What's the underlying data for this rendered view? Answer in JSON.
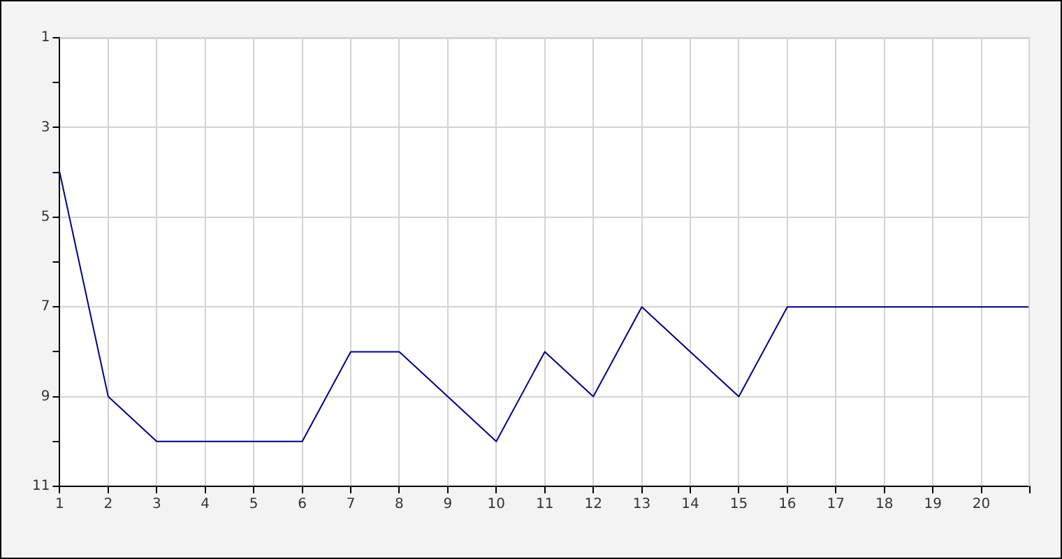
{
  "chart_data": {
    "type": "line",
    "x": [
      1,
      2,
      3,
      4,
      5,
      6,
      7,
      8,
      9,
      10,
      11,
      12,
      13,
      14,
      15,
      16,
      17,
      18,
      19,
      20,
      21
    ],
    "series": [
      {
        "color": "#000080",
        "values": [
          4,
          9,
          10,
          10,
          10,
          10,
          8,
          8,
          9,
          10,
          8,
          9,
          7,
          8,
          9,
          7,
          7,
          7,
          7,
          7,
          7
        ]
      }
    ],
    "xlim": [
      1,
      21
    ],
    "xticks": [
      1,
      2,
      3,
      4,
      5,
      6,
      7,
      8,
      9,
      10,
      11,
      12,
      13,
      14,
      15,
      16,
      17,
      18,
      19,
      20,
      {
        "value": 21,
        "label": null
      }
    ],
    "ylim": [
      11,
      1
    ],
    "yticks": [
      1,
      {
        "value": 2,
        "label": null
      },
      3,
      {
        "value": 4,
        "label": null
      },
      5,
      {
        "value": 6,
        "label": null
      },
      7,
      {
        "value": 8,
        "label": null
      },
      9,
      {
        "value": 10,
        "label": null
      },
      11
    ],
    "grid": true,
    "legend": false,
    "marker": "none",
    "line_style": "solid"
  }
}
